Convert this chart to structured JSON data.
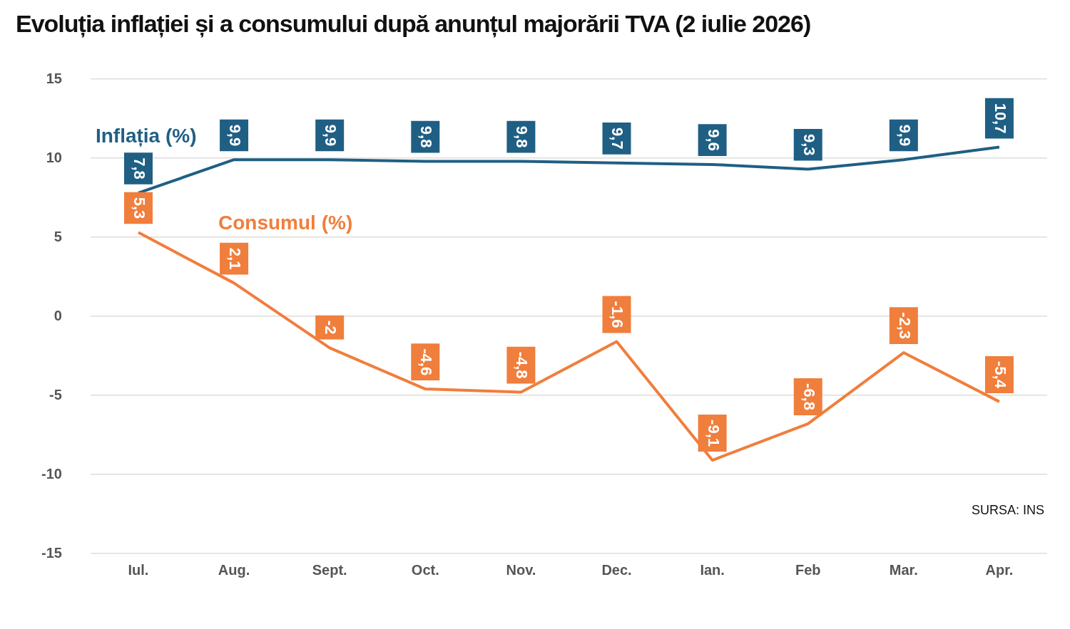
{
  "chart_data": {
    "type": "line",
    "title": "Evoluția inflației și a consumului după anunțul majorării TVA (2 iulie 2026)",
    "categories": [
      "Iul.",
      "Aug.",
      "Sept.",
      "Oct.",
      "Nov.",
      "Dec.",
      "Ian.",
      "Feb",
      "Mar.",
      "Apr."
    ],
    "series": [
      {
        "name": "Inflația (%)",
        "color": "#1f5f84",
        "values": [
          7.8,
          9.9,
          9.9,
          9.8,
          9.8,
          9.7,
          9.6,
          9.3,
          9.9,
          10.7
        ],
        "value_labels": [
          "7,8",
          "9,9",
          "9,9",
          "9,8",
          "9,8",
          "9,7",
          "9,6",
          "9,3",
          "9,9",
          "10,7"
        ]
      },
      {
        "name": "Consumul (%)",
        "color": "#f07e3c",
        "values": [
          5.3,
          2.1,
          -2,
          -4.6,
          -4.8,
          -1.6,
          -9.1,
          -6.8,
          -2.3,
          -5.4
        ],
        "value_labels": [
          "5,3",
          "2,1",
          "-2",
          "-4,6",
          "-4,8",
          "-1,6",
          "-9,1",
          "-6,8",
          "-2,3",
          "-5,4"
        ]
      }
    ],
    "ylim": [
      -15,
      15
    ],
    "yticks": [
      -15,
      -10,
      -5,
      0,
      5,
      10,
      15
    ],
    "grid": "y",
    "legend": "top left",
    "marker": "none",
    "line_style": "solid",
    "annotations": [
      "SURSA: INS"
    ]
  }
}
